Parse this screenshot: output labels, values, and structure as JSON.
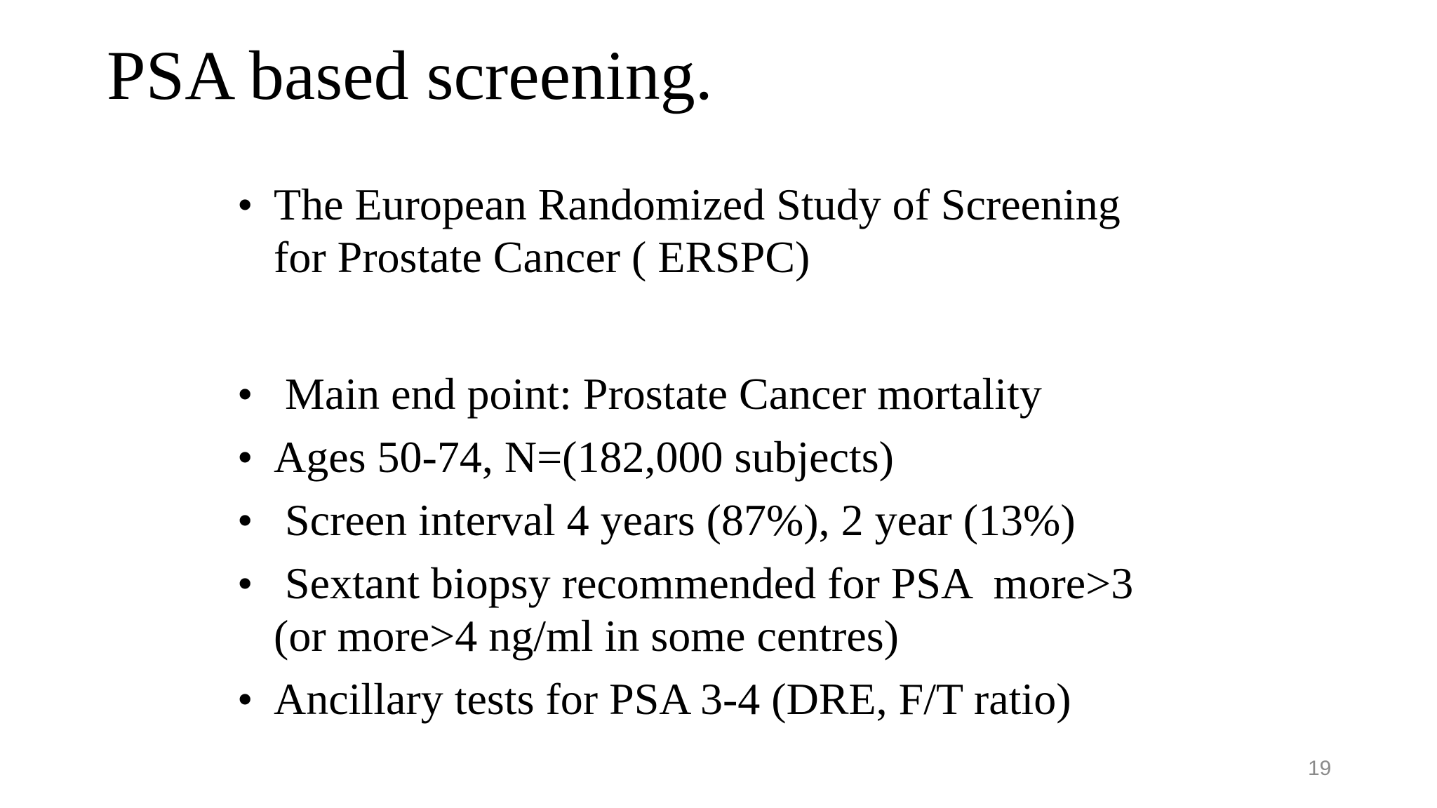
{
  "slide": {
    "title": "PSA based screening.",
    "bullet_marker": "•",
    "bullets": [
      {
        "lines": [
          "The European Randomized Study of Screening",
          "for Prostate Cancer ( ERSPC)"
        ]
      },
      {
        "lines": [
          " Main end point: Prostate Cancer mortality"
        ]
      },
      {
        "lines": [
          "Ages 50-74, N=(182,000 subjects)"
        ]
      },
      {
        "lines": [
          " Screen interval 4 years (87%), 2 year (13%)"
        ]
      },
      {
        "lines": [
          " Sextant biopsy recommended for PSA  more>3",
          "(or more>4 ng/ml in some centres)"
        ]
      },
      {
        "lines": [
          "Ancillary tests for PSA 3-4 (DRE, F/T ratio)"
        ]
      }
    ],
    "page_number": "19",
    "colors": {
      "background": "#ffffff",
      "text": "#000000",
      "page_number": "#8a8a8a"
    }
  }
}
